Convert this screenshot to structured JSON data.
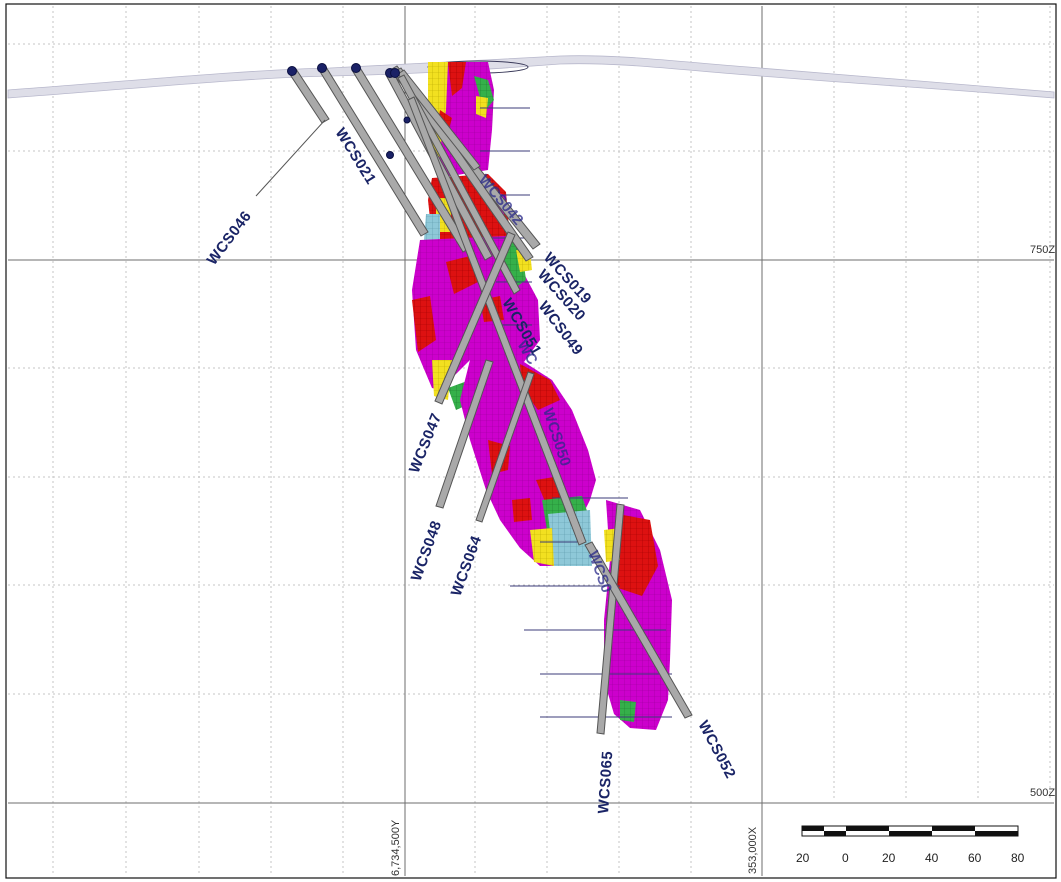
{
  "grid_labels": {
    "z_750": "750Z",
    "z_500": "500Z",
    "northing": "6,734,500Y",
    "easting": "353,000X"
  },
  "scale_bar": {
    "ticks": [
      "20",
      "0",
      "20",
      "40",
      "60",
      "80"
    ]
  },
  "drill_holes": [
    {
      "id": "WCS046",
      "label": "WCS046"
    },
    {
      "id": "WCS021",
      "label": "WCS021"
    },
    {
      "id": "WCS042",
      "label": "WCS042"
    },
    {
      "id": "WCS019",
      "label": "WCS019"
    },
    {
      "id": "WCS020",
      "label": "WCS020"
    },
    {
      "id": "WCS049",
      "label": "WCS049"
    },
    {
      "id": "WCS051",
      "label": "WCS051"
    },
    {
      "id": "WCS047",
      "label": "WCS047"
    },
    {
      "id": "WCS050",
      "label": "WCS050"
    },
    {
      "id": "WCS048",
      "label": "WCS048"
    },
    {
      "id": "WCS064",
      "label": "WCS064"
    },
    {
      "id": "WCS065",
      "label": "WCS065"
    },
    {
      "id": "WCS052",
      "label": "WCS052"
    },
    {
      "id": "WCS0_partial",
      "label": "WCS0"
    },
    {
      "id": "WC_partial",
      "label": "WC"
    }
  ],
  "colors": {
    "magenta": "#cc00cc",
    "red": "#dd1111",
    "yellow": "#f2e020",
    "green": "#35b04a",
    "lightblue": "#8ec8d8",
    "hole_fill": "#a9a9a9",
    "hole_outline": "#555555",
    "label": "#1a2466"
  }
}
